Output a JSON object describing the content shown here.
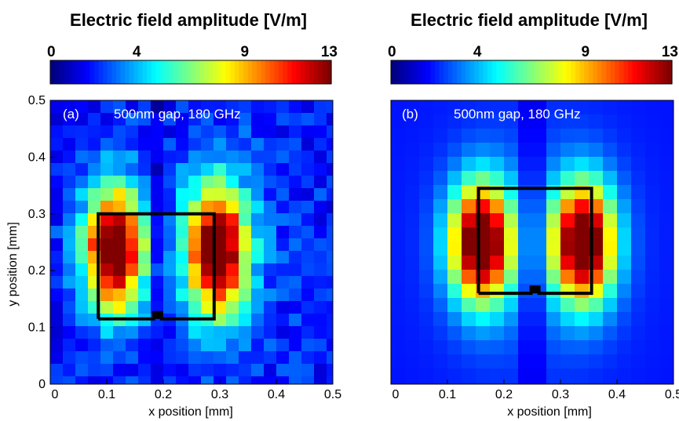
{
  "chart_data": [
    {
      "type": "heatmap",
      "panel_label": "(a)",
      "annotation": "500nm gap, 180 GHz",
      "colorbar_title": "Electric field amplitude [V/m]",
      "colorbar_ticks": [
        "0",
        "4",
        "9",
        "13"
      ],
      "value_range": [
        0,
        13
      ],
      "colormap": "jet",
      "xlabel": "x position [mm]",
      "ylabel": "y position [mm]",
      "xlim": [
        0,
        0.5
      ],
      "ylim": [
        0,
        0.5
      ],
      "x_ticks": [
        "0",
        "0.1",
        "0.2",
        "0.3",
        "0.4",
        "0.5"
      ],
      "y_ticks": [
        "0",
        "0.1",
        "0.2",
        "0.3",
        "0.4",
        "0.5"
      ],
      "grid": "pixelated, measured",
      "field_model": {
        "background": 1.8,
        "noise": 0.9,
        "hotspots": [
          {
            "x": 0.11,
            "y": 0.24,
            "peak": 12.5,
            "sx": 0.035,
            "sy": 0.075
          },
          {
            "x": 0.29,
            "y": 0.24,
            "peak": 12.5,
            "sx": 0.035,
            "sy": 0.075
          }
        ],
        "dark_gap_x": 0.19
      },
      "overlay_outline": {
        "x_min": 0.085,
        "x_max": 0.29,
        "y_min": 0.115,
        "y_max": 0.3,
        "gap_x": 0.19
      }
    },
    {
      "type": "heatmap",
      "panel_label": "(b)",
      "annotation": "500nm gap, 180 GHz",
      "colorbar_title": "Electric field amplitude [V/m]",
      "colorbar_ticks": [
        "0",
        "4",
        "9",
        "13"
      ],
      "value_range": [
        0,
        13
      ],
      "colormap": "jet",
      "xlabel": "x position [mm]",
      "ylabel": "",
      "xlim": [
        0,
        0.5
      ],
      "ylim": [
        0,
        0.5
      ],
      "x_ticks": [
        "0",
        "0.1",
        "0.2",
        "0.3",
        "0.4",
        "0.5"
      ],
      "y_ticks": [],
      "grid": "pixelated, simulated",
      "field_model": {
        "background": 1.8,
        "noise": 0.0,
        "hotspots": [
          {
            "x": 0.16,
            "y": 0.26,
            "peak": 12.8,
            "sx": 0.038,
            "sy": 0.07
          },
          {
            "x": 0.34,
            "y": 0.26,
            "peak": 12.8,
            "sx": 0.038,
            "sy": 0.07
          }
        ],
        "dark_gap_x": 0.25
      },
      "overlay_outline": {
        "x_min": 0.155,
        "x_max": 0.355,
        "y_min": 0.16,
        "y_max": 0.345,
        "gap_x": 0.255
      }
    }
  ]
}
